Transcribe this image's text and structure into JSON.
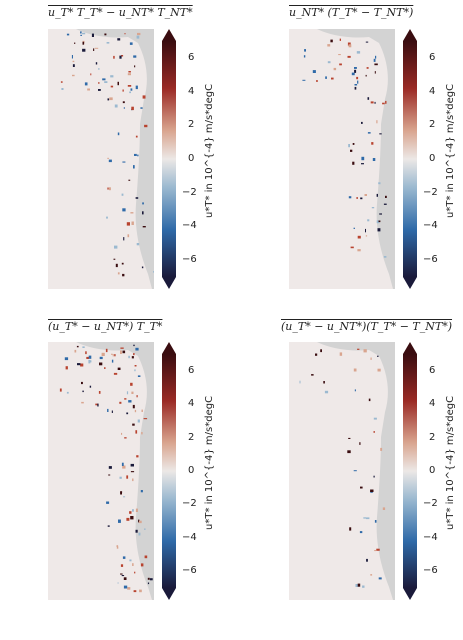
{
  "chart_data": [
    {
      "type": "heatmap",
      "title": "u_T* T_T* − u_NT* T_NT*",
      "colorbar": {
        "label": "u*T* in 10^{-4} m/s*degC",
        "ticks": [
          6,
          4,
          2,
          0,
          -2,
          -4,
          -6
        ],
        "range": [
          -7,
          7
        ],
        "extend": "both",
        "colormap": "diverging dark-blue–white–dark-red"
      },
      "land_color": "#d3d3d3",
      "ocean_background_value": 0
    },
    {
      "type": "heatmap",
      "title": "u_NT* (T_T* − T_NT*)",
      "colorbar": {
        "label": "u*T* in 10^{-4} m/s*degC",
        "ticks": [
          6,
          4,
          2,
          0,
          -2,
          -4,
          -6
        ],
        "range": [
          -7,
          7
        ],
        "extend": "both",
        "colormap": "diverging dark-blue–white–dark-red"
      },
      "land_color": "#d3d3d3",
      "ocean_background_value": 0
    },
    {
      "type": "heatmap",
      "title": "(u_T* − u_NT*) T_T*",
      "colorbar": {
        "label": "u*T* in 10^{-4} m/s*degC",
        "ticks": [
          6,
          4,
          2,
          0,
          -2,
          -4,
          -6
        ],
        "range": [
          -7,
          7
        ],
        "extend": "both",
        "colormap": "diverging dark-blue–white–dark-red"
      },
      "land_color": "#d3d3d3",
      "ocean_background_value": 0
    },
    {
      "type": "heatmap",
      "title": "(u_T* − u_NT*)(T_T* − T_NT*)",
      "colorbar": {
        "label": "u*T* in 10^{-4} m/s*degC",
        "ticks": [
          6,
          4,
          2,
          0,
          -2,
          -4,
          -6
        ],
        "range": [
          -7,
          7
        ],
        "extend": "both",
        "colormap": "diverging dark-blue–white–dark-red"
      },
      "land_color": "#d3d3d3",
      "ocean_background_value": 0
    }
  ],
  "colors": {
    "land": "#d3d3d3",
    "ocean": "#f0e9e8",
    "neg_max": "#1a1a3a",
    "neg_mid": "#2f6aa8",
    "zero": "#ece8e6",
    "pos_mid": "#b8432f",
    "pos_max": "#3a0d10"
  }
}
